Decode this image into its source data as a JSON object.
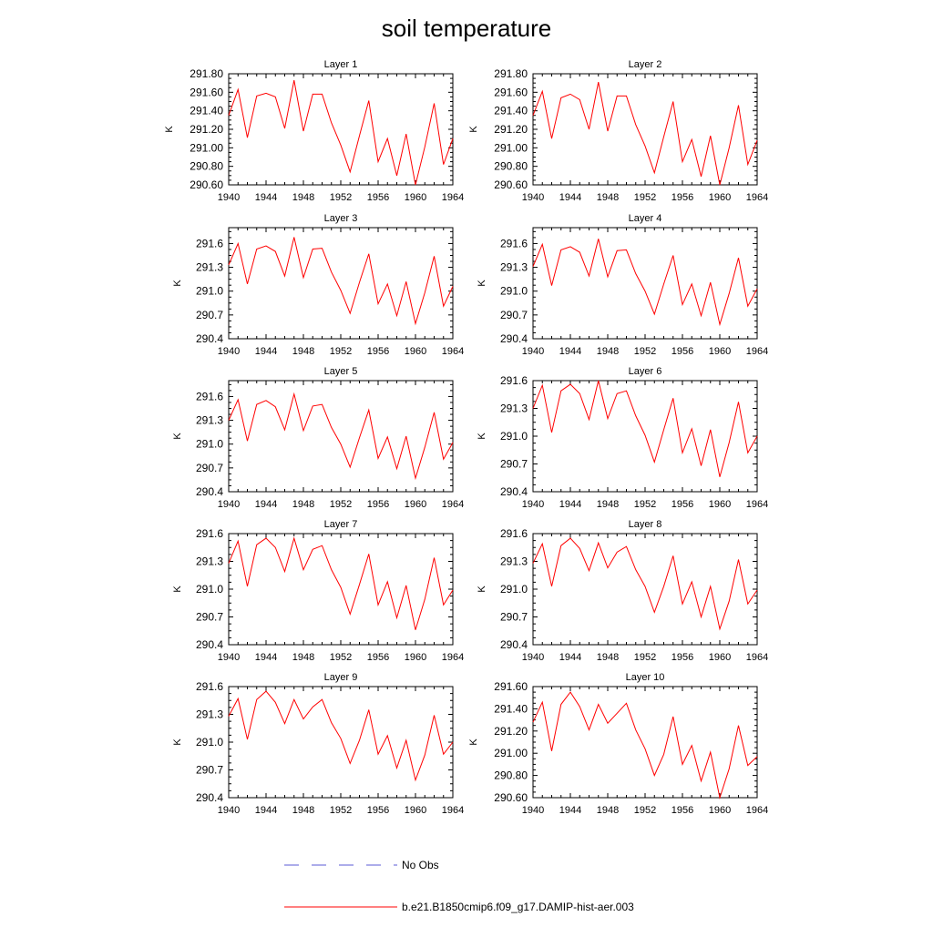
{
  "figure": {
    "title": "soil temperature",
    "legend": [
      {
        "label": "No Obs",
        "color": "#5b5bd6",
        "dash": true
      },
      {
        "label": "b.e21.B1850cmip6.f09_g17.DAMIP-hist-aer.003",
        "color": "#ff0000",
        "dash": false
      }
    ]
  },
  "chart_data": [
    {
      "type": "line",
      "title": "Layer 1",
      "ylabel": "K",
      "x": [
        1940,
        1941,
        1942,
        1943,
        1944,
        1945,
        1946,
        1947,
        1948,
        1949,
        1950,
        1951,
        1952,
        1953,
        1954,
        1955,
        1956,
        1957,
        1958,
        1959,
        1960,
        1961,
        1962,
        1963,
        1964
      ],
      "series": [
        {
          "name": "b.e21.B1850cmip6.f09_g17.DAMIP-hist-aer.003",
          "color": "#ff0000",
          "values": [
            291.35,
            291.63,
            291.11,
            291.56,
            291.59,
            291.55,
            291.21,
            291.73,
            291.18,
            291.58,
            291.58,
            291.27,
            291.03,
            290.74,
            291.13,
            291.51,
            290.85,
            291.1,
            290.7,
            291.15,
            290.6,
            291.01,
            291.48,
            290.82,
            291.1
          ]
        }
      ],
      "xlim": [
        1940,
        1964
      ],
      "ylim": [
        290.6,
        291.8
      ],
      "xticks": [
        1940,
        1944,
        1948,
        1952,
        1956,
        1960,
        1964
      ],
      "yticks": [
        "290.60",
        "290.80",
        "291.00",
        "291.20",
        "291.40",
        "291.60",
        "291.80"
      ]
    },
    {
      "type": "line",
      "title": "Layer 2",
      "ylabel": "K",
      "x": [
        1940,
        1941,
        1942,
        1943,
        1944,
        1945,
        1946,
        1947,
        1948,
        1949,
        1950,
        1951,
        1952,
        1953,
        1954,
        1955,
        1956,
        1957,
        1958,
        1959,
        1960,
        1961,
        1962,
        1963,
        1964
      ],
      "series": [
        {
          "name": "b.e21.B1850cmip6.f09_g17.DAMIP-hist-aer.003",
          "color": "#ff0000",
          "values": [
            291.35,
            291.61,
            291.1,
            291.54,
            291.58,
            291.52,
            291.2,
            291.71,
            291.18,
            291.56,
            291.56,
            291.25,
            291.02,
            290.73,
            291.12,
            291.5,
            290.85,
            291.09,
            290.69,
            291.13,
            290.6,
            291.0,
            291.46,
            290.82,
            291.08
          ]
        }
      ],
      "xlim": [
        1940,
        1964
      ],
      "ylim": [
        290.6,
        291.8
      ],
      "xticks": [
        1940,
        1944,
        1948,
        1952,
        1956,
        1960,
        1964
      ],
      "yticks": [
        "290.60",
        "290.80",
        "291.00",
        "291.20",
        "291.40",
        "291.60",
        "291.80"
      ]
    },
    {
      "type": "line",
      "title": "Layer 3",
      "ylabel": "K",
      "x": [
        1940,
        1941,
        1942,
        1943,
        1944,
        1945,
        1946,
        1947,
        1948,
        1949,
        1950,
        1951,
        1952,
        1953,
        1954,
        1955,
        1956,
        1957,
        1958,
        1959,
        1960,
        1961,
        1962,
        1963,
        1964
      ],
      "series": [
        {
          "name": "b.e21.B1850cmip6.f09_g17.DAMIP-hist-aer.003",
          "color": "#ff0000",
          "values": [
            291.33,
            291.6,
            291.09,
            291.53,
            291.57,
            291.5,
            291.19,
            291.68,
            291.17,
            291.53,
            291.54,
            291.24,
            291.01,
            290.72,
            291.11,
            291.47,
            290.84,
            291.09,
            290.69,
            291.12,
            290.59,
            290.98,
            291.44,
            290.81,
            291.06
          ]
        }
      ],
      "xlim": [
        1940,
        1964
      ],
      "ylim": [
        290.4,
        291.8
      ],
      "xticks": [
        1940,
        1944,
        1948,
        1952,
        1956,
        1960,
        1964
      ],
      "yticks": [
        "290.4",
        "290.7",
        "291.0",
        "291.3",
        "291.6"
      ]
    },
    {
      "type": "line",
      "title": "Layer 4",
      "ylabel": "K",
      "x": [
        1940,
        1941,
        1942,
        1943,
        1944,
        1945,
        1946,
        1947,
        1948,
        1949,
        1950,
        1951,
        1952,
        1953,
        1954,
        1955,
        1956,
        1957,
        1958,
        1959,
        1960,
        1961,
        1962,
        1963,
        1964
      ],
      "series": [
        {
          "name": "b.e21.B1850cmip6.f09_g17.DAMIP-hist-aer.003",
          "color": "#ff0000",
          "values": [
            291.31,
            291.59,
            291.07,
            291.52,
            291.56,
            291.49,
            291.19,
            291.66,
            291.18,
            291.51,
            291.52,
            291.22,
            291.0,
            290.71,
            291.09,
            291.45,
            290.83,
            291.09,
            290.69,
            291.11,
            290.58,
            290.97,
            291.42,
            290.81,
            291.03
          ]
        }
      ],
      "xlim": [
        1940,
        1964
      ],
      "ylim": [
        290.4,
        291.8
      ],
      "xticks": [
        1940,
        1944,
        1948,
        1952,
        1956,
        1960,
        1964
      ],
      "yticks": [
        "290.4",
        "290.7",
        "291.0",
        "291.3",
        "291.6"
      ]
    },
    {
      "type": "line",
      "title": "Layer 5",
      "ylabel": "K",
      "x": [
        1940,
        1941,
        1942,
        1943,
        1944,
        1945,
        1946,
        1947,
        1948,
        1949,
        1950,
        1951,
        1952,
        1953,
        1954,
        1955,
        1956,
        1957,
        1958,
        1959,
        1960,
        1961,
        1962,
        1963,
        1964
      ],
      "series": [
        {
          "name": "b.e21.B1850cmip6.f09_g17.DAMIP-hist-aer.003",
          "color": "#ff0000",
          "values": [
            291.3,
            291.56,
            291.04,
            291.5,
            291.55,
            291.47,
            291.18,
            291.63,
            291.17,
            291.48,
            291.5,
            291.21,
            291.0,
            290.71,
            291.08,
            291.43,
            290.82,
            291.09,
            290.69,
            291.1,
            290.57,
            290.96,
            291.4,
            290.81,
            291.02
          ]
        }
      ],
      "xlim": [
        1940,
        1964
      ],
      "ylim": [
        290.4,
        291.8
      ],
      "xticks": [
        1940,
        1944,
        1948,
        1952,
        1956,
        1960,
        1964
      ],
      "yticks": [
        "290.4",
        "290.7",
        "291.0",
        "291.3",
        "291.6"
      ]
    },
    {
      "type": "line",
      "title": "Layer 6",
      "ylabel": "K",
      "x": [
        1940,
        1941,
        1942,
        1943,
        1944,
        1945,
        1946,
        1947,
        1948,
        1949,
        1950,
        1951,
        1952,
        1953,
        1954,
        1955,
        1956,
        1957,
        1958,
        1959,
        1960,
        1961,
        1962,
        1963,
        1964
      ],
      "series": [
        {
          "name": "b.e21.B1850cmip6.f09_g17.DAMIP-hist-aer.003",
          "color": "#ff0000",
          "values": [
            291.3,
            291.55,
            291.04,
            291.49,
            291.56,
            291.46,
            291.18,
            291.6,
            291.19,
            291.46,
            291.49,
            291.22,
            291.01,
            290.72,
            291.07,
            291.41,
            290.82,
            291.08,
            290.68,
            291.07,
            290.56,
            290.93,
            291.37,
            290.82,
            291.0
          ]
        }
      ],
      "xlim": [
        1940,
        1964
      ],
      "ylim": [
        290.4,
        291.6
      ],
      "xticks": [
        1940,
        1944,
        1948,
        1952,
        1956,
        1960,
        1964
      ],
      "yticks": [
        "290.4",
        "290.7",
        "291.0",
        "291.3",
        "291.6"
      ]
    },
    {
      "type": "line",
      "title": "Layer 7",
      "ylabel": "K",
      "x": [
        1940,
        1941,
        1942,
        1943,
        1944,
        1945,
        1946,
        1947,
        1948,
        1949,
        1950,
        1951,
        1952,
        1953,
        1954,
        1955,
        1956,
        1957,
        1958,
        1959,
        1960,
        1961,
        1962,
        1963,
        1964
      ],
      "series": [
        {
          "name": "b.e21.B1850cmip6.f09_g17.DAMIP-hist-aer.003",
          "color": "#ff0000",
          "values": [
            291.28,
            291.52,
            291.03,
            291.48,
            291.55,
            291.45,
            291.19,
            291.55,
            291.21,
            291.43,
            291.47,
            291.21,
            291.02,
            290.73,
            291.05,
            291.38,
            290.83,
            291.08,
            290.69,
            291.04,
            290.56,
            290.89,
            291.34,
            290.83,
            290.99
          ]
        }
      ],
      "xlim": [
        1940,
        1964
      ],
      "ylim": [
        290.4,
        291.6
      ],
      "xticks": [
        1940,
        1944,
        1948,
        1952,
        1956,
        1960,
        1964
      ],
      "yticks": [
        "290.4",
        "290.7",
        "291.0",
        "291.3",
        "291.6"
      ]
    },
    {
      "type": "line",
      "title": "Layer 8",
      "ylabel": "K",
      "x": [
        1940,
        1941,
        1942,
        1943,
        1944,
        1945,
        1946,
        1947,
        1948,
        1949,
        1950,
        1951,
        1952,
        1953,
        1954,
        1955,
        1956,
        1957,
        1958,
        1959,
        1960,
        1961,
        1962,
        1963,
        1964
      ],
      "series": [
        {
          "name": "b.e21.B1850cmip6.f09_g17.DAMIP-hist-aer.003",
          "color": "#ff0000",
          "values": [
            291.28,
            291.49,
            291.03,
            291.47,
            291.55,
            291.44,
            291.2,
            291.5,
            291.23,
            291.4,
            291.46,
            291.21,
            291.03,
            290.75,
            291.03,
            291.36,
            290.84,
            291.08,
            290.7,
            291.03,
            290.57,
            290.87,
            291.32,
            290.84,
            290.99
          ]
        }
      ],
      "xlim": [
        1940,
        1964
      ],
      "ylim": [
        290.4,
        291.6
      ],
      "xticks": [
        1940,
        1944,
        1948,
        1952,
        1956,
        1960,
        1964
      ],
      "yticks": [
        "290.4",
        "290.7",
        "291.0",
        "291.3",
        "291.6"
      ]
    },
    {
      "type": "line",
      "title": "Layer 9",
      "ylabel": "K",
      "x": [
        1940,
        1941,
        1942,
        1943,
        1944,
        1945,
        1946,
        1947,
        1948,
        1949,
        1950,
        1951,
        1952,
        1953,
        1954,
        1955,
        1956,
        1957,
        1958,
        1959,
        1960,
        1961,
        1962,
        1963,
        1964
      ],
      "series": [
        {
          "name": "b.e21.B1850cmip6.f09_g17.DAMIP-hist-aer.003",
          "color": "#ff0000",
          "values": [
            291.28,
            291.47,
            291.03,
            291.46,
            291.55,
            291.43,
            291.2,
            291.46,
            291.25,
            291.38,
            291.46,
            291.21,
            291.04,
            290.77,
            291.02,
            291.35,
            290.87,
            291.07,
            290.72,
            291.02,
            290.59,
            290.86,
            291.29,
            290.87,
            291.0
          ]
        }
      ],
      "xlim": [
        1940,
        1964
      ],
      "ylim": [
        290.4,
        291.6
      ],
      "xticks": [
        1940,
        1944,
        1948,
        1952,
        1956,
        1960,
        1964
      ],
      "yticks": [
        "290.4",
        "290.7",
        "291.0",
        "291.3",
        "291.6"
      ]
    },
    {
      "type": "line",
      "title": "Layer 10",
      "ylabel": "K",
      "x": [
        1940,
        1941,
        1942,
        1943,
        1944,
        1945,
        1946,
        1947,
        1948,
        1949,
        1950,
        1951,
        1952,
        1953,
        1954,
        1955,
        1956,
        1957,
        1958,
        1959,
        1960,
        1961,
        1962,
        1963,
        1964
      ],
      "series": [
        {
          "name": "b.e21.B1850cmip6.f09_g17.DAMIP-hist-aer.003",
          "color": "#ff0000",
          "values": [
            291.28,
            291.46,
            291.02,
            291.44,
            291.55,
            291.42,
            291.21,
            291.44,
            291.27,
            291.36,
            291.45,
            291.21,
            291.04,
            290.8,
            290.99,
            291.33,
            290.9,
            291.07,
            290.75,
            291.01,
            290.6,
            290.86,
            291.25,
            290.89,
            290.97
          ]
        }
      ],
      "xlim": [
        1940,
        1964
      ],
      "ylim": [
        290.6,
        291.6
      ],
      "xticks": [
        1940,
        1944,
        1948,
        1952,
        1956,
        1960,
        1964
      ],
      "yticks": [
        "290.60",
        "290.80",
        "291.00",
        "291.20",
        "291.40",
        "291.60"
      ]
    }
  ]
}
